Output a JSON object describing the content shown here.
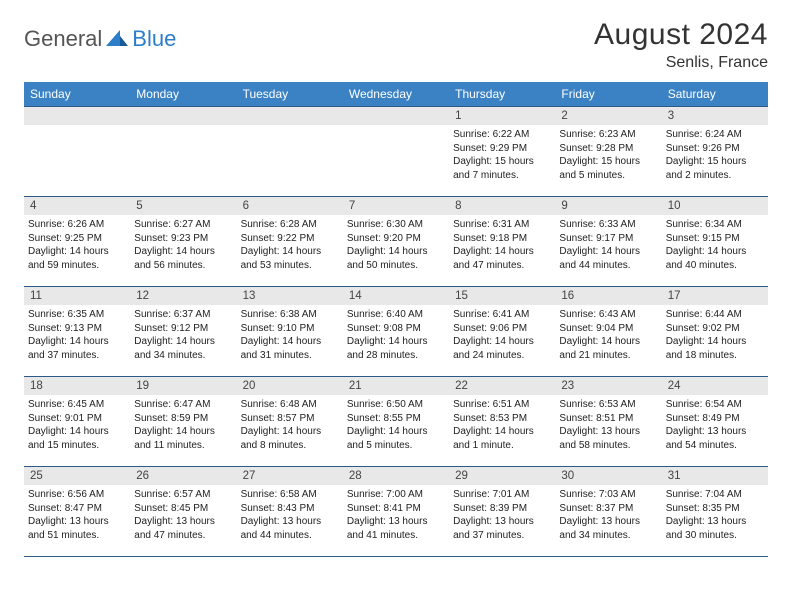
{
  "logo": {
    "part1": "General",
    "part2": "Blue"
  },
  "title": "August 2024",
  "location": "Senlis, France",
  "header_color": "#3b82c4",
  "border_color": "#2a5a8a",
  "daynum_bg": "#e8e8e8",
  "weekdays": [
    "Sunday",
    "Monday",
    "Tuesday",
    "Wednesday",
    "Thursday",
    "Friday",
    "Saturday"
  ],
  "first_day_index": 4,
  "days": [
    {
      "n": "1",
      "sunrise": "6:22 AM",
      "sunset": "9:29 PM",
      "daylight": "15 hours and 7 minutes."
    },
    {
      "n": "2",
      "sunrise": "6:23 AM",
      "sunset": "9:28 PM",
      "daylight": "15 hours and 5 minutes."
    },
    {
      "n": "3",
      "sunrise": "6:24 AM",
      "sunset": "9:26 PM",
      "daylight": "15 hours and 2 minutes."
    },
    {
      "n": "4",
      "sunrise": "6:26 AM",
      "sunset": "9:25 PM",
      "daylight": "14 hours and 59 minutes."
    },
    {
      "n": "5",
      "sunrise": "6:27 AM",
      "sunset": "9:23 PM",
      "daylight": "14 hours and 56 minutes."
    },
    {
      "n": "6",
      "sunrise": "6:28 AM",
      "sunset": "9:22 PM",
      "daylight": "14 hours and 53 minutes."
    },
    {
      "n": "7",
      "sunrise": "6:30 AM",
      "sunset": "9:20 PM",
      "daylight": "14 hours and 50 minutes."
    },
    {
      "n": "8",
      "sunrise": "6:31 AM",
      "sunset": "9:18 PM",
      "daylight": "14 hours and 47 minutes."
    },
    {
      "n": "9",
      "sunrise": "6:33 AM",
      "sunset": "9:17 PM",
      "daylight": "14 hours and 44 minutes."
    },
    {
      "n": "10",
      "sunrise": "6:34 AM",
      "sunset": "9:15 PM",
      "daylight": "14 hours and 40 minutes."
    },
    {
      "n": "11",
      "sunrise": "6:35 AM",
      "sunset": "9:13 PM",
      "daylight": "14 hours and 37 minutes."
    },
    {
      "n": "12",
      "sunrise": "6:37 AM",
      "sunset": "9:12 PM",
      "daylight": "14 hours and 34 minutes."
    },
    {
      "n": "13",
      "sunrise": "6:38 AM",
      "sunset": "9:10 PM",
      "daylight": "14 hours and 31 minutes."
    },
    {
      "n": "14",
      "sunrise": "6:40 AM",
      "sunset": "9:08 PM",
      "daylight": "14 hours and 28 minutes."
    },
    {
      "n": "15",
      "sunrise": "6:41 AM",
      "sunset": "9:06 PM",
      "daylight": "14 hours and 24 minutes."
    },
    {
      "n": "16",
      "sunrise": "6:43 AM",
      "sunset": "9:04 PM",
      "daylight": "14 hours and 21 minutes."
    },
    {
      "n": "17",
      "sunrise": "6:44 AM",
      "sunset": "9:02 PM",
      "daylight": "14 hours and 18 minutes."
    },
    {
      "n": "18",
      "sunrise": "6:45 AM",
      "sunset": "9:01 PM",
      "daylight": "14 hours and 15 minutes."
    },
    {
      "n": "19",
      "sunrise": "6:47 AM",
      "sunset": "8:59 PM",
      "daylight": "14 hours and 11 minutes."
    },
    {
      "n": "20",
      "sunrise": "6:48 AM",
      "sunset": "8:57 PM",
      "daylight": "14 hours and 8 minutes."
    },
    {
      "n": "21",
      "sunrise": "6:50 AM",
      "sunset": "8:55 PM",
      "daylight": "14 hours and 5 minutes."
    },
    {
      "n": "22",
      "sunrise": "6:51 AM",
      "sunset": "8:53 PM",
      "daylight": "14 hours and 1 minute."
    },
    {
      "n": "23",
      "sunrise": "6:53 AM",
      "sunset": "8:51 PM",
      "daylight": "13 hours and 58 minutes."
    },
    {
      "n": "24",
      "sunrise": "6:54 AM",
      "sunset": "8:49 PM",
      "daylight": "13 hours and 54 minutes."
    },
    {
      "n": "25",
      "sunrise": "6:56 AM",
      "sunset": "8:47 PM",
      "daylight": "13 hours and 51 minutes."
    },
    {
      "n": "26",
      "sunrise": "6:57 AM",
      "sunset": "8:45 PM",
      "daylight": "13 hours and 47 minutes."
    },
    {
      "n": "27",
      "sunrise": "6:58 AM",
      "sunset": "8:43 PM",
      "daylight": "13 hours and 44 minutes."
    },
    {
      "n": "28",
      "sunrise": "7:00 AM",
      "sunset": "8:41 PM",
      "daylight": "13 hours and 41 minutes."
    },
    {
      "n": "29",
      "sunrise": "7:01 AM",
      "sunset": "8:39 PM",
      "daylight": "13 hours and 37 minutes."
    },
    {
      "n": "30",
      "sunrise": "7:03 AM",
      "sunset": "8:37 PM",
      "daylight": "13 hours and 34 minutes."
    },
    {
      "n": "31",
      "sunrise": "7:04 AM",
      "sunset": "8:35 PM",
      "daylight": "13 hours and 30 minutes."
    }
  ],
  "labels": {
    "sunrise": "Sunrise:",
    "sunset": "Sunset:",
    "daylight": "Daylight:"
  }
}
